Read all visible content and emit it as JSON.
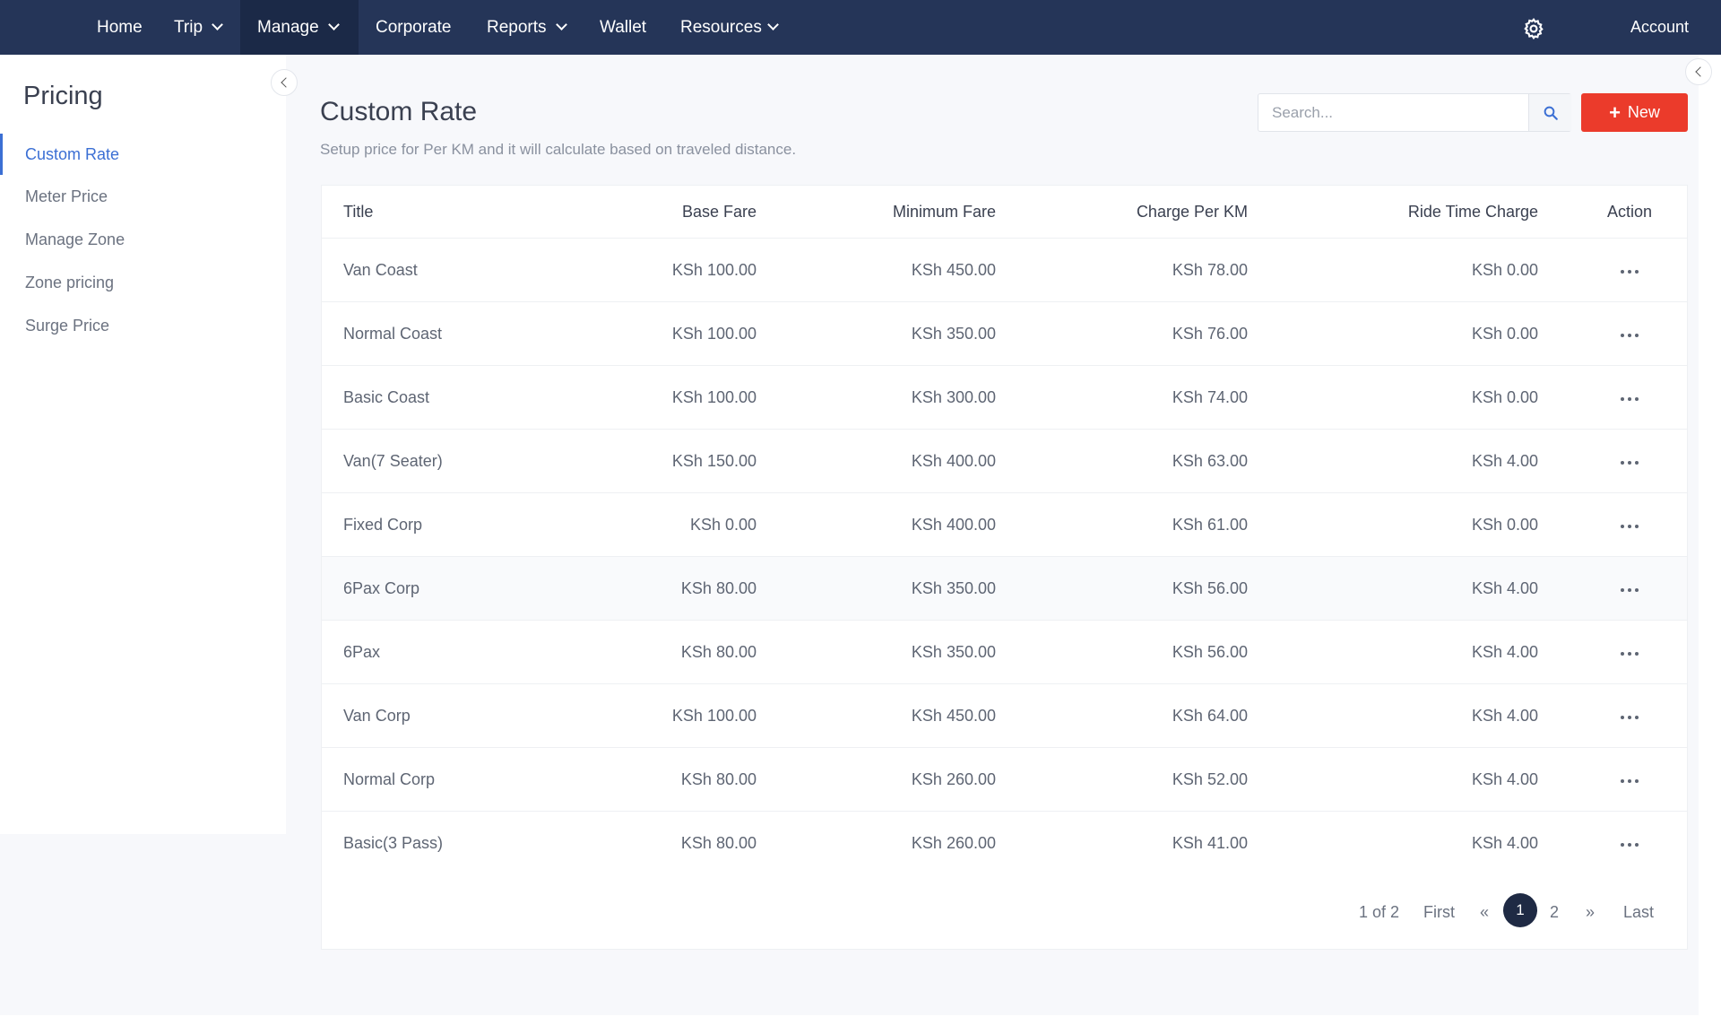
{
  "nav": {
    "items": [
      "Home",
      "Trip",
      "Manage",
      "Corporate",
      "Reports",
      "Wallet",
      "Resources"
    ],
    "active": "Manage",
    "account_label": "Account",
    "settings_icon": "gear-icon"
  },
  "sidebar": {
    "title": "Pricing",
    "items": [
      "Custom Rate",
      "Meter Price",
      "Manage Zone",
      "Zone pricing",
      "Surge Price"
    ],
    "active": "Custom Rate"
  },
  "header": {
    "title": "Custom Rate",
    "subtitle": "Setup price for Per KM and it will calculate based on traveled distance.",
    "search_placeholder": "Search...",
    "new_label": "New"
  },
  "table": {
    "columns": [
      "Title",
      "Base Fare",
      "Minimum Fare",
      "Charge Per KM",
      "Ride Time Charge",
      "Action"
    ],
    "rows": [
      [
        "Van Coast",
        "KSh 100.00",
        "KSh 450.00",
        "KSh 78.00",
        "KSh 0.00"
      ],
      [
        "Normal Coast",
        "KSh 100.00",
        "KSh 350.00",
        "KSh 76.00",
        "KSh 0.00"
      ],
      [
        "Basic Coast",
        "KSh 100.00",
        "KSh 300.00",
        "KSh 74.00",
        "KSh 0.00"
      ],
      [
        "Van(7 Seater)",
        "KSh 150.00",
        "KSh 400.00",
        "KSh 63.00",
        "KSh 4.00"
      ],
      [
        "Fixed Corp",
        "KSh 0.00",
        "KSh 400.00",
        "KSh 61.00",
        "KSh 0.00"
      ],
      [
        "6Pax Corp",
        "KSh 80.00",
        "KSh 350.00",
        "KSh 56.00",
        "KSh 4.00"
      ],
      [
        "6Pax",
        "KSh 80.00",
        "KSh 350.00",
        "KSh 56.00",
        "KSh 4.00"
      ],
      [
        "Van Corp",
        "KSh 100.00",
        "KSh 450.00",
        "KSh 64.00",
        "KSh 4.00"
      ],
      [
        "Normal Corp",
        "KSh 80.00",
        "KSh 260.00",
        "KSh 52.00",
        "KSh 4.00"
      ],
      [
        "Basic(3 Pass)",
        "KSh 80.00",
        "KSh 260.00",
        "KSh 41.00",
        "KSh 4.00"
      ]
    ]
  },
  "pagination": {
    "summary": "1 of 2",
    "first": "First",
    "prev": "«",
    "current": "1",
    "next_page": "2",
    "next": "»",
    "last": "Last"
  },
  "colors": {
    "nav_bg": "#253558",
    "accent": "#3b6fd4",
    "new_button": "#eb3b2b"
  }
}
